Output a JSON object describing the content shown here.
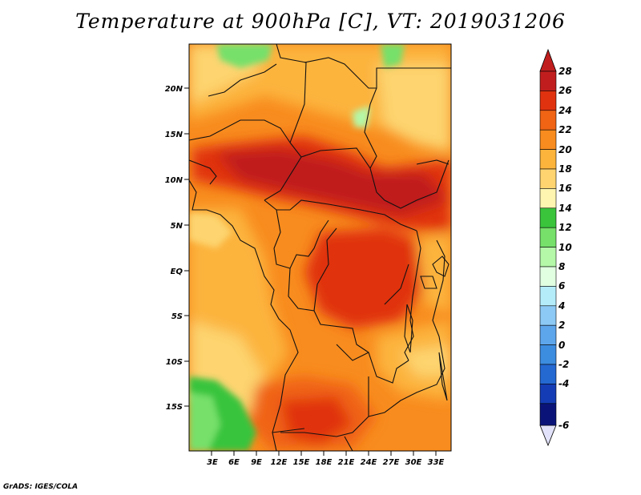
{
  "title": "Temperature at 900hPa [C], VT: 2019031206",
  "credit": "GrADS: IGES/COLA",
  "map": {
    "lat_labels": [
      "20N",
      "15N",
      "10N",
      "5N",
      "EQ",
      "5S",
      "10S",
      "15S"
    ],
    "lon_labels": [
      "3E",
      "6E",
      "9E",
      "12E",
      "15E",
      "18E",
      "21E",
      "24E",
      "27E",
      "30E",
      "33E"
    ]
  },
  "colorbar": {
    "labels": [
      "28",
      "26",
      "24",
      "22",
      "20",
      "18",
      "16",
      "14",
      "12",
      "10",
      "8",
      "6",
      "4",
      "2",
      "0",
      "-2",
      "-4",
      "-6"
    ],
    "colors": [
      "#c01e1e",
      "#e0320f",
      "#f06414",
      "#f88c1e",
      "#fcb43c",
      "#fdd470",
      "#fdf5b0",
      "#39c43c",
      "#76e06a",
      "#b4f8a8",
      "#e1ffe1",
      "#b4ecfa",
      "#8cc9f4",
      "#5ea6ec",
      "#3c8ce0",
      "#2468d2",
      "#143cb4",
      "#0a1478",
      "#e2e2fa"
    ]
  }
}
